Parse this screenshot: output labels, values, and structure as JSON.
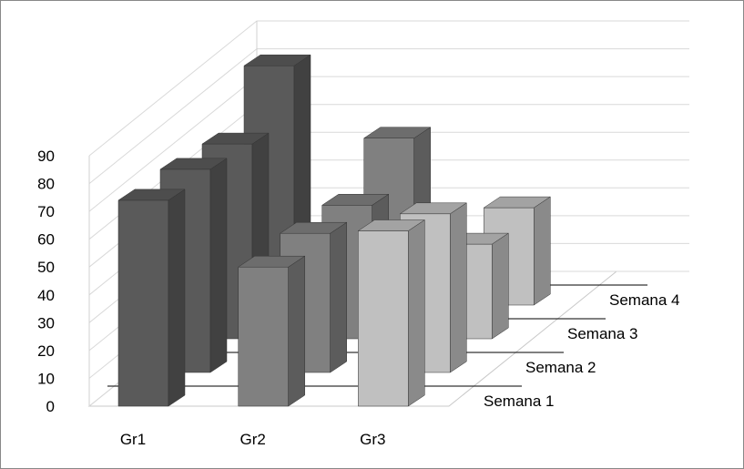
{
  "chart_data": {
    "type": "bar",
    "subtype": "3d-clustered-depth",
    "title": "",
    "xlabel": "",
    "ylabel": "",
    "categories": [
      "Gr1",
      "Gr2",
      "Gr3"
    ],
    "series": [
      {
        "name": "Semana 1",
        "values": [
          74,
          50,
          63
        ],
        "color": "#5a5a5a"
      },
      {
        "name": "Semana 2",
        "values": [
          73,
          50,
          57
        ],
        "color": "#5a5a5a"
      },
      {
        "name": "Semana 3",
        "values": [
          70,
          48,
          34
        ],
        "color": "#808080"
      },
      {
        "name": "Semana 4",
        "values": [
          86,
          60,
          35
        ],
        "color": "#c0c0c0"
      }
    ],
    "category_colors": [
      "#5a5a5a",
      "#808080",
      "#c0c0c0"
    ],
    "ylim": [
      0,
      90
    ],
    "yticks": [
      "0",
      "10",
      "20",
      "30",
      "40",
      "50",
      "60",
      "70",
      "80",
      "90"
    ],
    "grid": true,
    "legend": "depth-axis-right"
  }
}
